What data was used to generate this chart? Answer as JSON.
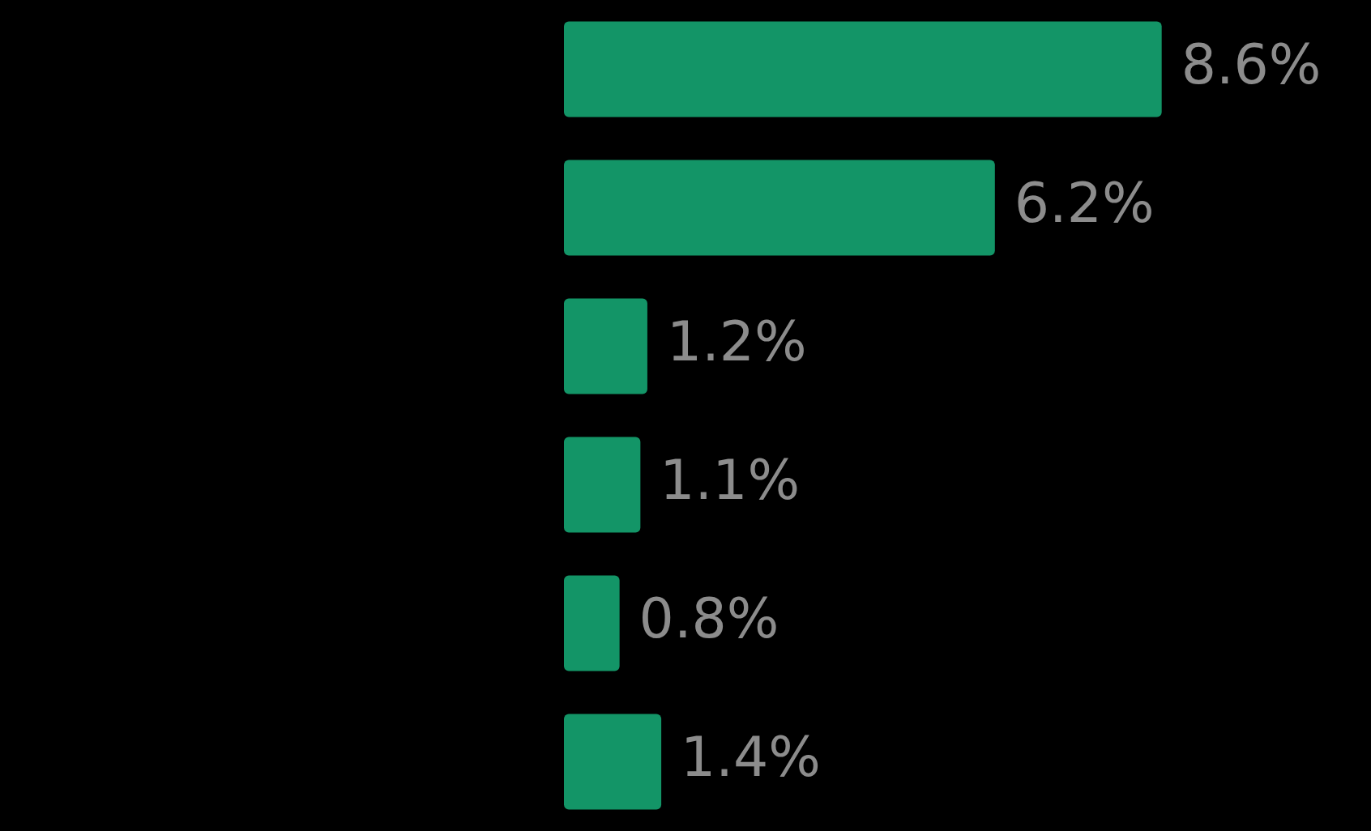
{
  "chart_data": {
    "type": "bar",
    "orientation": "horizontal",
    "categories": [
      null,
      null,
      null,
      null,
      null,
      null
    ],
    "values": [
      8.6,
      6.2,
      1.2,
      1.1,
      0.8,
      1.4
    ],
    "value_labels": [
      "8.6%",
      "6.2%",
      "1.2%",
      "1.1%",
      "0.8%",
      "1.4%"
    ],
    "color": "#139567",
    "legend": false
  }
}
